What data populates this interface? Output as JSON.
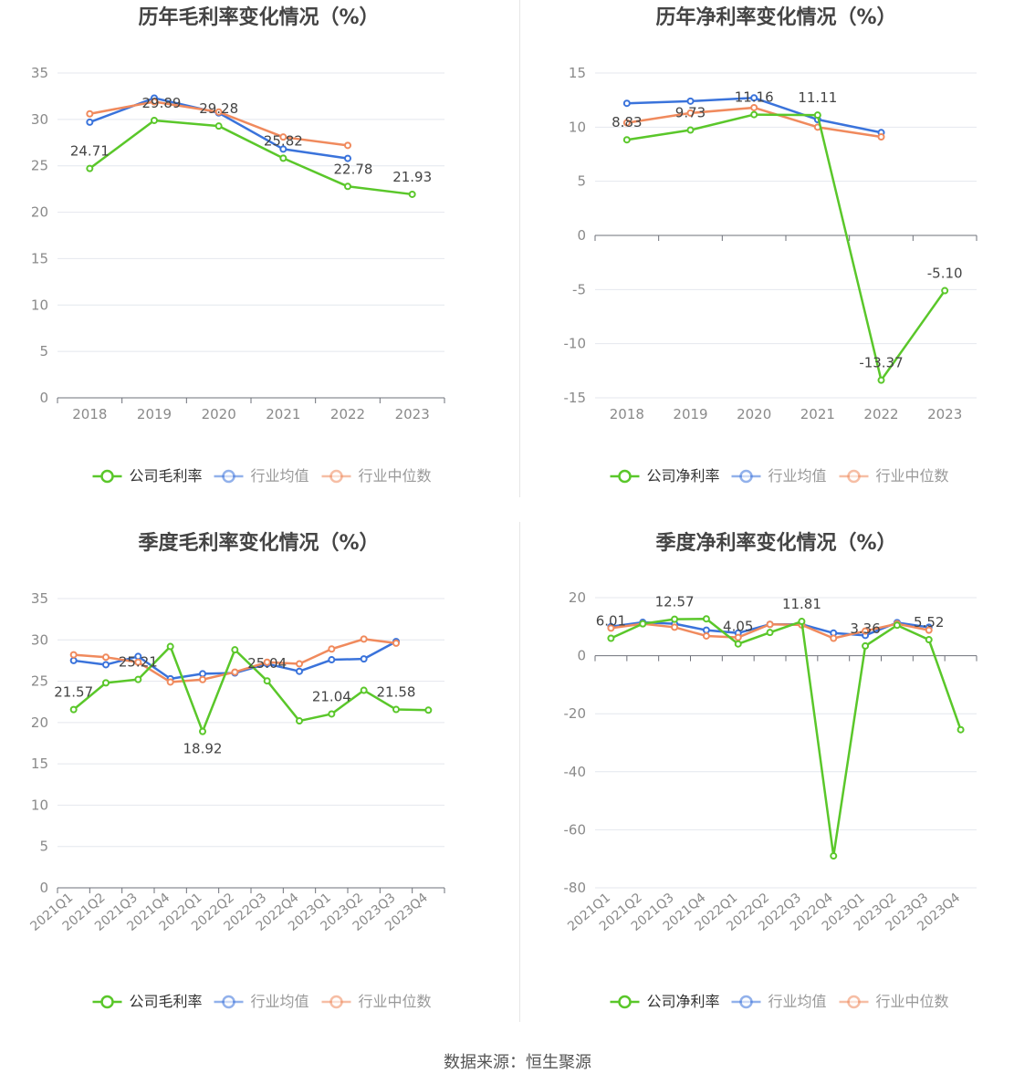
{
  "colors": {
    "company": "#5ac72a",
    "avg": "#3a73db",
    "median": "#f08a5d",
    "axis": "#6e7079",
    "grid": "#e4e7ee",
    "tick_text": "#8a8a8a",
    "title_text": "#444444"
  },
  "source": "数据来源：恒生聚源",
  "chart_data": [
    {
      "type": "line",
      "title": "历年毛利率变化情况（%）",
      "categories": [
        "2018",
        "2019",
        "2020",
        "2021",
        "2022",
        "2023"
      ],
      "ylim": [
        0,
        35
      ],
      "yticks": [
        0,
        5,
        10,
        15,
        20,
        25,
        30,
        35
      ],
      "grid": true,
      "legend_position": "bottom",
      "series": [
        {
          "name": "公司毛利率",
          "role": "company",
          "values": [
            24.71,
            29.89,
            29.28,
            25.82,
            22.78,
            21.93
          ],
          "labels": [
            "24.71",
            "29.89",
            "29.28",
            "25.82",
            "22.78",
            "21.93"
          ]
        },
        {
          "name": "行业均值",
          "role": "avg",
          "values": [
            29.7,
            32.3,
            30.7,
            26.8,
            25.8,
            null
          ]
        },
        {
          "name": "行业中位数",
          "role": "median",
          "values": [
            30.6,
            31.9,
            30.8,
            28.1,
            27.2,
            null
          ]
        }
      ]
    },
    {
      "type": "line",
      "title": "历年净利率变化情况（%）",
      "categories": [
        "2018",
        "2019",
        "2020",
        "2021",
        "2022",
        "2023"
      ],
      "ylim": [
        -15,
        15
      ],
      "yticks": [
        -15,
        -10,
        -5,
        0,
        5,
        10,
        15
      ],
      "grid": true,
      "legend_position": "bottom",
      "series": [
        {
          "name": "公司净利率",
          "role": "company",
          "values": [
            8.83,
            9.73,
            11.16,
            11.11,
            -13.37,
            -5.1
          ],
          "labels": [
            "8.83",
            "9.73",
            "11.16",
            "11.11",
            "-13.37",
            "-5.10"
          ]
        },
        {
          "name": "行业均值",
          "role": "avg",
          "values": [
            12.2,
            12.4,
            12.7,
            10.7,
            9.5,
            null
          ]
        },
        {
          "name": "行业中位数",
          "role": "median",
          "values": [
            10.4,
            11.3,
            11.8,
            10.0,
            9.1,
            null
          ]
        }
      ]
    },
    {
      "type": "line",
      "title": "季度毛利率变化情况（%）",
      "categories": [
        "2021Q1",
        "2021Q2",
        "2021Q3",
        "2021Q4",
        "2022Q1",
        "2022Q2",
        "2022Q3",
        "2022Q4",
        "2023Q1",
        "2023Q2",
        "2023Q3",
        "2023Q4"
      ],
      "ylim": [
        0,
        35
      ],
      "yticks": [
        0,
        5,
        10,
        15,
        20,
        25,
        30,
        35
      ],
      "grid": true,
      "legend_position": "bottom",
      "rotate_x_labels": true,
      "series": [
        {
          "name": "公司毛利率",
          "role": "company",
          "values": [
            21.57,
            24.8,
            25.21,
            29.2,
            18.92,
            28.8,
            25.04,
            20.2,
            21.04,
            23.9,
            21.58,
            21.5
          ],
          "labels": [
            "21.57",
            "",
            "25.21",
            "",
            "18.92",
            "",
            "25.04",
            "",
            "21.04",
            "",
            "21.58",
            ""
          ]
        },
        {
          "name": "行业均值",
          "role": "avg",
          "values": [
            27.5,
            27.0,
            28.0,
            25.3,
            25.9,
            26.0,
            27.1,
            26.2,
            27.6,
            27.7,
            29.8,
            null
          ]
        },
        {
          "name": "行业中位数",
          "role": "median",
          "values": [
            28.2,
            27.9,
            27.3,
            24.9,
            25.2,
            26.1,
            27.3,
            27.1,
            28.9,
            30.1,
            29.6,
            null
          ]
        }
      ]
    },
    {
      "type": "line",
      "title": "季度净利率变化情况（%）",
      "categories": [
        "2021Q1",
        "2021Q2",
        "2021Q3",
        "2021Q4",
        "2022Q1",
        "2022Q2",
        "2022Q3",
        "2022Q4",
        "2023Q1",
        "2023Q2",
        "2023Q3",
        "2023Q4"
      ],
      "ylim": [
        -80,
        20
      ],
      "yticks": [
        -80,
        -60,
        -40,
        -20,
        0,
        20
      ],
      "grid": true,
      "legend_position": "bottom",
      "rotate_x_labels": true,
      "series": [
        {
          "name": "公司净利率",
          "role": "company",
          "values": [
            6.01,
            11.0,
            12.57,
            12.7,
            4.05,
            8.0,
            11.81,
            -69.0,
            3.36,
            10.5,
            5.52,
            -25.5
          ],
          "labels": [
            "6.01",
            "",
            "12.57",
            "",
            "4.05",
            "",
            "11.81",
            "",
            "3.36",
            "",
            "5.52",
            ""
          ]
        },
        {
          "name": "行业均值",
          "role": "avg",
          "values": [
            10.0,
            11.5,
            11.0,
            8.8,
            7.8,
            10.8,
            10.8,
            7.8,
            7.0,
            11.4,
            9.8,
            null
          ]
        },
        {
          "name": "行业中位数",
          "role": "median",
          "values": [
            9.5,
            11.0,
            9.8,
            6.8,
            6.3,
            10.8,
            10.6,
            6.0,
            8.5,
            11.0,
            8.8,
            null
          ]
        }
      ]
    }
  ]
}
